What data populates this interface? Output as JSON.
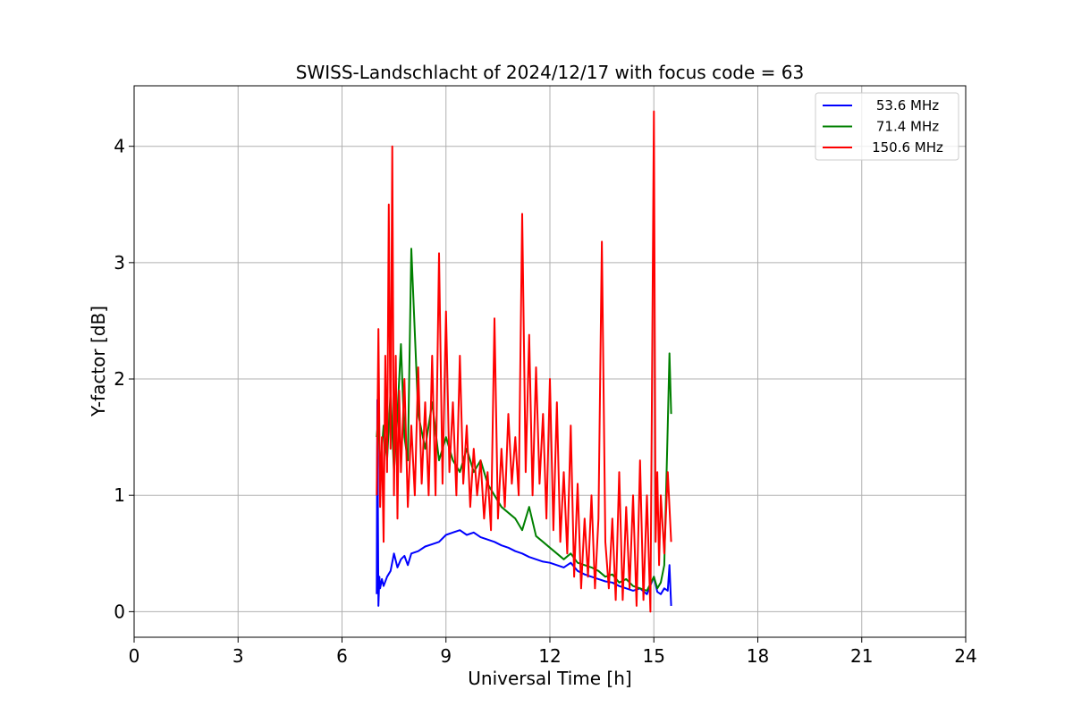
{
  "chart_data": {
    "type": "line",
    "title": "SWISS-Landschlacht of 2024/12/17 with focus code = 63",
    "xlabel": "Universal Time [h]",
    "ylabel": "Y-factor [dB]",
    "xlim": [
      0,
      24
    ],
    "ylim": [
      -0.22,
      4.52
    ],
    "xticks": [
      0,
      3,
      6,
      9,
      12,
      15,
      18,
      21,
      24
    ],
    "yticks": [
      0,
      1,
      2,
      3,
      4
    ],
    "grid": true,
    "legend_position": "top-right",
    "series": [
      {
        "name": "53.6 MHz",
        "color": "#0000ff",
        "x": [
          7.0,
          7.02,
          7.05,
          7.08,
          7.1,
          7.15,
          7.2,
          7.3,
          7.4,
          7.5,
          7.6,
          7.7,
          7.8,
          7.9,
          8.0,
          8.2,
          8.4,
          8.6,
          8.8,
          9.0,
          9.2,
          9.4,
          9.6,
          9.8,
          10.0,
          10.2,
          10.4,
          10.6,
          10.8,
          11.0,
          11.2,
          11.4,
          11.6,
          11.8,
          12.0,
          12.2,
          12.4,
          12.6,
          12.8,
          13.0,
          13.2,
          13.4,
          13.6,
          13.8,
          14.0,
          14.2,
          14.4,
          14.6,
          14.8,
          15.0,
          15.1,
          15.2,
          15.3,
          15.4,
          15.45,
          15.5
        ],
        "y": [
          0.15,
          1.82,
          0.05,
          0.3,
          0.2,
          0.28,
          0.22,
          0.3,
          0.35,
          0.5,
          0.38,
          0.45,
          0.48,
          0.4,
          0.5,
          0.52,
          0.56,
          0.58,
          0.6,
          0.66,
          0.68,
          0.7,
          0.66,
          0.68,
          0.64,
          0.62,
          0.6,
          0.57,
          0.55,
          0.52,
          0.5,
          0.47,
          0.45,
          0.43,
          0.42,
          0.4,
          0.38,
          0.42,
          0.35,
          0.32,
          0.3,
          0.28,
          0.26,
          0.25,
          0.22,
          0.2,
          0.18,
          0.2,
          0.15,
          0.3,
          0.17,
          0.15,
          0.2,
          0.18,
          0.4,
          0.05
        ]
      },
      {
        "name": "71.4 MHz",
        "color": "#008000",
        "x": [
          7.0,
          7.05,
          7.1,
          7.2,
          7.3,
          7.4,
          7.5,
          7.6,
          7.7,
          7.8,
          7.9,
          8.0,
          8.2,
          8.4,
          8.6,
          8.8,
          9.0,
          9.2,
          9.4,
          9.6,
          9.8,
          10.0,
          10.2,
          10.4,
          10.6,
          10.8,
          11.0,
          11.2,
          11.4,
          11.6,
          11.8,
          12.0,
          12.2,
          12.4,
          12.6,
          12.8,
          13.0,
          13.2,
          13.4,
          13.6,
          13.8,
          14.0,
          14.2,
          14.4,
          14.6,
          14.8,
          15.0,
          15.1,
          15.2,
          15.3,
          15.4,
          15.45,
          15.5
        ],
        "y": [
          1.5,
          1.68,
          1.2,
          1.6,
          1.3,
          1.9,
          1.2,
          1.7,
          2.3,
          1.5,
          1.3,
          3.12,
          1.7,
          1.4,
          1.8,
          1.3,
          1.5,
          1.3,
          1.2,
          1.4,
          1.2,
          1.3,
          1.1,
          1.0,
          0.9,
          0.85,
          0.8,
          0.7,
          0.9,
          0.65,
          0.6,
          0.55,
          0.5,
          0.45,
          0.5,
          0.42,
          0.4,
          0.38,
          0.35,
          0.3,
          0.32,
          0.25,
          0.28,
          0.22,
          0.2,
          0.18,
          0.3,
          0.2,
          0.25,
          0.4,
          1.6,
          2.22,
          1.7
        ]
      },
      {
        "name": "150.6 MHz",
        "color": "#ff0000",
        "x": [
          7.0,
          7.05,
          7.1,
          7.15,
          7.2,
          7.25,
          7.3,
          7.35,
          7.4,
          7.45,
          7.5,
          7.55,
          7.6,
          7.65,
          7.7,
          7.8,
          7.9,
          8.0,
          8.1,
          8.2,
          8.3,
          8.4,
          8.5,
          8.6,
          8.7,
          8.8,
          8.9,
          9.0,
          9.1,
          9.2,
          9.3,
          9.4,
          9.5,
          9.6,
          9.7,
          9.8,
          9.9,
          10.0,
          10.1,
          10.2,
          10.3,
          10.4,
          10.5,
          10.6,
          10.7,
          10.8,
          10.9,
          11.0,
          11.1,
          11.2,
          11.3,
          11.4,
          11.5,
          11.6,
          11.7,
          11.8,
          11.9,
          12.0,
          12.1,
          12.2,
          12.3,
          12.4,
          12.5,
          12.6,
          12.7,
          12.8,
          12.9,
          13.0,
          13.1,
          13.2,
          13.3,
          13.4,
          13.5,
          13.6,
          13.7,
          13.8,
          13.9,
          14.0,
          14.1,
          14.2,
          14.3,
          14.4,
          14.5,
          14.6,
          14.7,
          14.8,
          14.9,
          15.0,
          15.05,
          15.1,
          15.15,
          15.2,
          15.3,
          15.4,
          15.5
        ],
        "y": [
          1.0,
          2.43,
          0.9,
          1.5,
          0.6,
          2.2,
          1.2,
          3.5,
          1.4,
          4.0,
          1.0,
          2.2,
          0.8,
          1.9,
          1.2,
          2.0,
          0.9,
          1.6,
          1.0,
          2.1,
          1.1,
          1.8,
          1.0,
          2.2,
          1.0,
          3.08,
          1.1,
          2.58,
          1.2,
          1.8,
          1.0,
          2.2,
          1.1,
          1.6,
          0.9,
          1.4,
          1.0,
          1.3,
          0.8,
          1.2,
          0.7,
          2.52,
          0.8,
          1.4,
          0.9,
          1.7,
          1.1,
          1.5,
          1.0,
          3.42,
          1.2,
          2.38,
          1.0,
          2.1,
          1.1,
          1.7,
          0.8,
          2.0,
          0.7,
          1.8,
          0.6,
          1.2,
          0.5,
          1.6,
          0.3,
          1.1,
          0.2,
          0.8,
          0.3,
          1.0,
          0.2,
          0.8,
          3.18,
          0.6,
          0.2,
          0.8,
          0.1,
          1.2,
          0.1,
          0.9,
          0.2,
          1.0,
          0.05,
          1.3,
          0.1,
          1.0,
          0.0,
          4.3,
          0.6,
          1.2,
          0.4,
          1.0,
          0.5,
          1.2,
          0.6
        ]
      }
    ]
  }
}
